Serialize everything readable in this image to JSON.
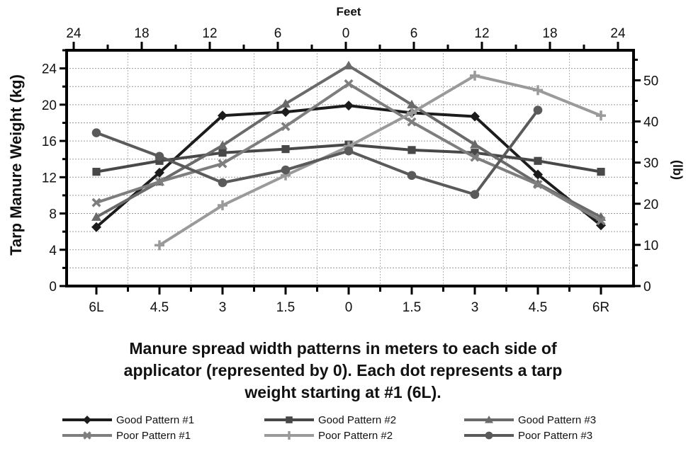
{
  "chart_data": {
    "type": "line",
    "title": "",
    "caption": [
      "Manure spread width patterns in meters to each side of",
      "applicator (represented by 0). Each dot represents a tarp",
      "weight starting at #1 (6L)."
    ],
    "x_bottom": {
      "tick_labels": [
        "6L",
        "4.5",
        "3",
        "1.5",
        "0",
        "1.5",
        "3",
        "4.5",
        "6R"
      ]
    },
    "x_top": {
      "label": "Feet",
      "tick_labels": [
        "24",
        "18",
        "12",
        "6",
        "0",
        "6",
        "12",
        "18",
        "24"
      ]
    },
    "y_left": {
      "label": "Tarp Manure Weight (kg)",
      "tick_labels": [
        "0",
        "4",
        "8",
        "12",
        "16",
        "20",
        "24"
      ],
      "ylim": [
        0,
        26
      ]
    },
    "y_right": {
      "label": "(lb)",
      "tick_labels": [
        "0",
        "10",
        "20",
        "30",
        "40",
        "50"
      ],
      "ylim": [
        0,
        57.3
      ]
    },
    "grid": true,
    "series": [
      {
        "name": "Good Pattern #1",
        "color": "#1c1c1c",
        "marker": "diamond",
        "points": [
          [
            0,
            6.5
          ],
          [
            1,
            12.5
          ],
          [
            2,
            18.8
          ],
          [
            3,
            19.2
          ],
          [
            4,
            19.9
          ],
          [
            5,
            19.1
          ],
          [
            6,
            18.7
          ],
          [
            7,
            12.3
          ],
          [
            8,
            6.7
          ]
        ]
      },
      {
        "name": "Good Pattern #2",
        "color": "#484848",
        "marker": "square",
        "points": [
          [
            0,
            12.6
          ],
          [
            1,
            13.8
          ],
          [
            2,
            14.7
          ],
          [
            3,
            15.1
          ],
          [
            4,
            15.6
          ],
          [
            5,
            15.0
          ],
          [
            6,
            14.7
          ],
          [
            7,
            13.8
          ],
          [
            8,
            12.6
          ]
        ]
      },
      {
        "name": "Good Pattern #3",
        "color": "#6a6a6a",
        "marker": "triangle",
        "points": [
          [
            0,
            7.6
          ],
          [
            1,
            11.5
          ],
          [
            2,
            15.5
          ],
          [
            3,
            20.1
          ],
          [
            4,
            24.3
          ],
          [
            5,
            20.0
          ],
          [
            6,
            15.6
          ],
          [
            7,
            11.3
          ],
          [
            8,
            7.6
          ]
        ]
      },
      {
        "name": "Poor Pattern #1",
        "color": "#7e7e7e",
        "marker": "x",
        "points": [
          [
            0,
            9.2
          ],
          [
            1,
            11.5
          ],
          [
            2,
            13.5
          ],
          [
            3,
            17.6
          ],
          [
            4,
            22.3
          ],
          [
            5,
            18.1
          ],
          [
            6,
            14.2
          ],
          [
            7,
            11.2
          ],
          [
            8,
            7.2
          ]
        ]
      },
      {
        "name": "Poor Pattern #2",
        "color": "#9a9a9a",
        "marker": "plus",
        "points": [
          [
            1,
            4.5
          ],
          [
            2,
            8.9
          ],
          [
            3,
            12.2
          ],
          [
            4,
            15.4
          ],
          [
            5,
            19.1
          ],
          [
            6,
            23.2
          ],
          [
            7,
            21.6
          ],
          [
            8,
            18.8
          ]
        ]
      },
      {
        "name": "Poor Pattern #3",
        "color": "#5a5a5a",
        "marker": "circle",
        "points": [
          [
            0,
            16.9
          ],
          [
            1,
            14.3
          ],
          [
            2,
            11.4
          ],
          [
            3,
            12.8
          ],
          [
            4,
            14.9
          ],
          [
            5,
            12.2
          ],
          [
            6,
            10.1
          ],
          [
            7,
            19.4
          ]
        ]
      }
    ],
    "legend_position": "bottom"
  }
}
